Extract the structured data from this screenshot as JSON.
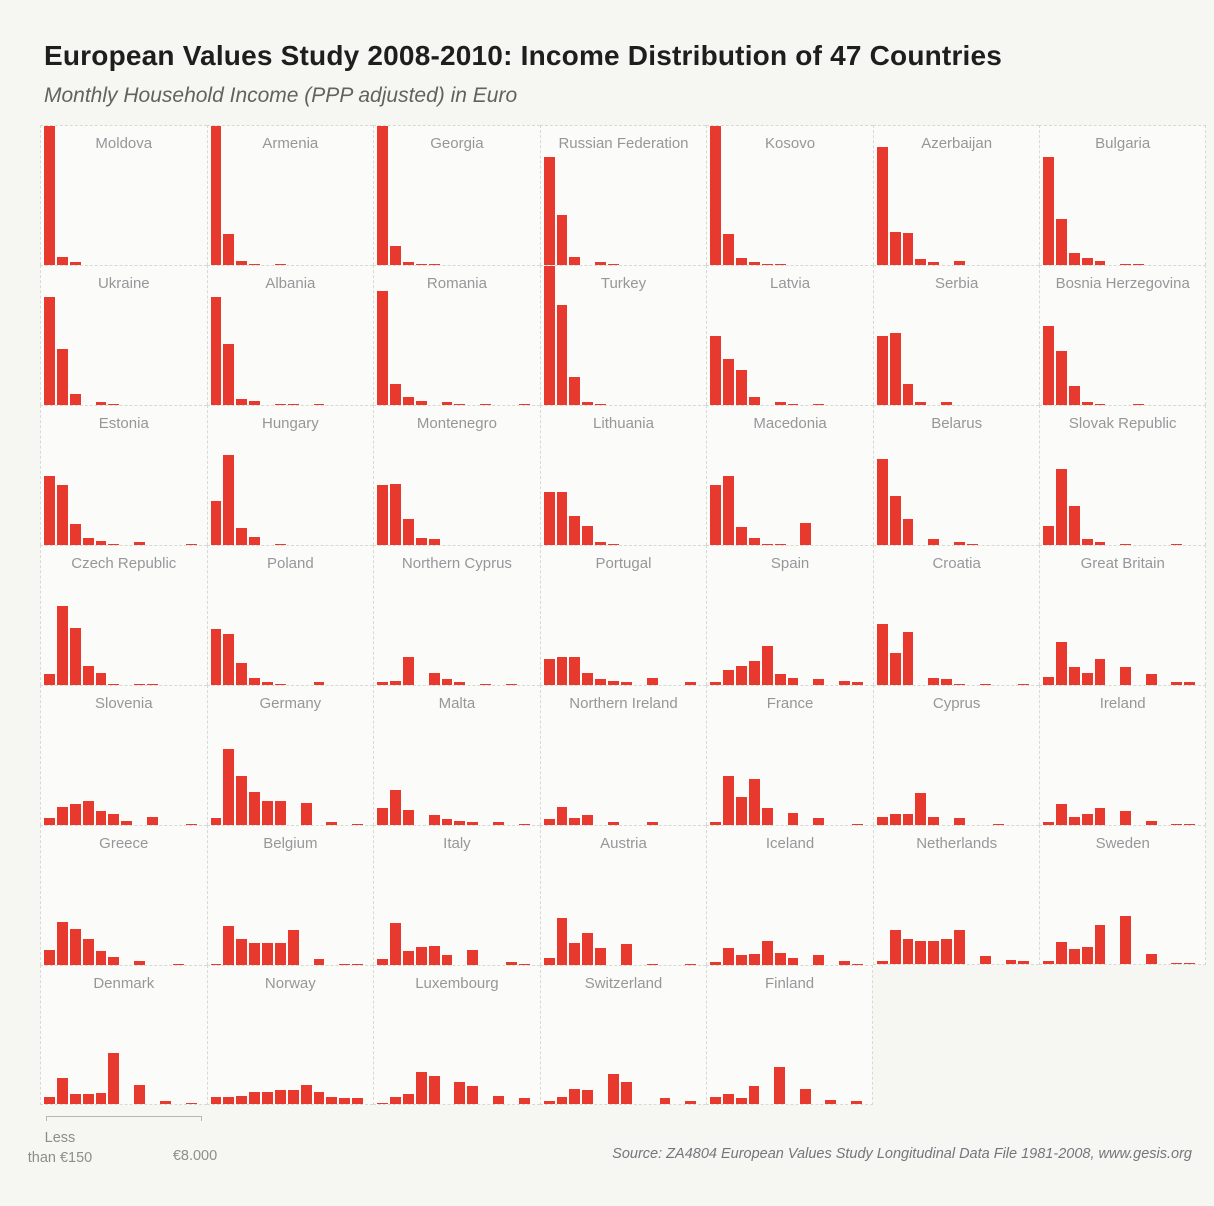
{
  "header": {
    "title": "European Values Study 2008-2010: Income Distribution of 47 Countries",
    "subtitle": "Monthly Household Income (PPP adjusted) in Euro"
  },
  "footer": {
    "axis_left_line1": "Less",
    "axis_left_line2": "than €150",
    "axis_right": "€8.000",
    "source": "Source: ZA4804 European Values Study Longitudinal Data File 1981-2008, www.gesis.org"
  },
  "colors": {
    "bar_red": "#e7392d",
    "page_background": "#f6f6f3",
    "cell_background": "#fbfbf9",
    "cell_border": "#d9d9d3",
    "title_text": "#1e1e1c",
    "muted_text": "#97979b"
  },
  "chart_data": {
    "type": "bar",
    "variant": "small-multiples histogram grid, 7 columns x 7 rows (last row has 5 panels)",
    "title": "European Values Study 2008-2010: Income Distribution of 47 Countries",
    "subtitle": "Monthly Household Income (PPP adjusted) in Euro",
    "xlabel_left": "Less than €150",
    "xlabel_right": "€8.000",
    "bin_count": 12,
    "y_unit": "relative frequency per income bin, expressed as % of panel height (estimated from pixels; no y-axis shown)",
    "legend": "none",
    "grid_lines": "off",
    "bar_color": "#e7392d",
    "countries": [
      {
        "name": "Moldova",
        "values": [
          100,
          6,
          2,
          0,
          0,
          0,
          0,
          0,
          0,
          0,
          0,
          0
        ]
      },
      {
        "name": "Armenia",
        "values": [
          100,
          22,
          3,
          1,
          0,
          1,
          0,
          0,
          0,
          0,
          0,
          0
        ]
      },
      {
        "name": "Georgia",
        "values": [
          100,
          14,
          2,
          1,
          1,
          0,
          0,
          0,
          0,
          0,
          0,
          0
        ]
      },
      {
        "name": "Russian Federation",
        "values": [
          78,
          36,
          6,
          0,
          2,
          1,
          0,
          0,
          0,
          0,
          0,
          0
        ]
      },
      {
        "name": "Kosovo",
        "values": [
          100,
          22,
          5,
          2,
          1,
          1,
          0,
          0,
          0,
          0,
          0,
          0
        ]
      },
      {
        "name": "Azerbaijan",
        "values": [
          85,
          24,
          23,
          4,
          2,
          0,
          3,
          0,
          0,
          0,
          0,
          0
        ]
      },
      {
        "name": "Bulgaria",
        "values": [
          78,
          33,
          9,
          5,
          3,
          0,
          1,
          1,
          0,
          0,
          0,
          0
        ]
      },
      {
        "name": "Ukraine",
        "values": [
          78,
          40,
          8,
          0,
          2,
          1,
          0,
          0,
          0,
          0,
          0,
          0
        ]
      },
      {
        "name": "Albania",
        "values": [
          78,
          44,
          4,
          3,
          0,
          1,
          1,
          0,
          1,
          0,
          0,
          0
        ]
      },
      {
        "name": "Romania",
        "values": [
          82,
          15,
          6,
          3,
          0,
          2,
          1,
          0,
          1,
          0,
          0,
          1
        ]
      },
      {
        "name": "Turkey",
        "values": [
          100,
          72,
          20,
          2,
          1,
          0,
          0,
          0,
          0,
          0,
          0,
          0
        ]
      },
      {
        "name": "Latvia",
        "values": [
          50,
          33,
          25,
          6,
          0,
          2,
          1,
          0,
          1,
          0,
          0,
          0
        ]
      },
      {
        "name": "Serbia",
        "values": [
          50,
          52,
          15,
          2,
          0,
          2,
          0,
          0,
          0,
          0,
          0,
          0
        ]
      },
      {
        "name": "Bosnia Herzegovina",
        "values": [
          57,
          39,
          14,
          2,
          1,
          0,
          0,
          1,
          0,
          0,
          0,
          0
        ]
      },
      {
        "name": "Estonia",
        "values": [
          50,
          43,
          15,
          5,
          3,
          1,
          0,
          2,
          0,
          0,
          0,
          1
        ]
      },
      {
        "name": "Hungary",
        "values": [
          32,
          65,
          12,
          6,
          0,
          1,
          0,
          0,
          0,
          0,
          0,
          0
        ]
      },
      {
        "name": "Montenegro",
        "values": [
          43,
          44,
          19,
          5,
          4,
          0,
          0,
          0,
          0,
          0,
          0,
          0
        ]
      },
      {
        "name": "Lithuania",
        "values": [
          38,
          38,
          21,
          14,
          2,
          1,
          0,
          0,
          0,
          0,
          0,
          0
        ]
      },
      {
        "name": "Macedonia",
        "values": [
          43,
          50,
          13,
          5,
          1,
          1,
          0,
          16,
          0,
          0,
          0,
          0
        ]
      },
      {
        "name": "Belarus",
        "values": [
          62,
          35,
          19,
          0,
          4,
          0,
          2,
          1,
          0,
          0,
          0,
          0
        ]
      },
      {
        "name": "Slovak Republic",
        "values": [
          14,
          55,
          28,
          4,
          2,
          0,
          1,
          0,
          0,
          0,
          1,
          0
        ]
      },
      {
        "name": "Czech Republic",
        "values": [
          8,
          57,
          41,
          14,
          9,
          1,
          0,
          1,
          1,
          0,
          0,
          0
        ]
      },
      {
        "name": "Poland",
        "values": [
          40,
          37,
          16,
          5,
          2,
          1,
          0,
          0,
          2,
          0,
          0,
          0
        ]
      },
      {
        "name": "Northern Cyprus",
        "values": [
          2,
          3,
          20,
          0,
          9,
          4,
          2,
          0,
          1,
          0,
          1,
          0
        ]
      },
      {
        "name": "Portugal",
        "values": [
          19,
          20,
          20,
          9,
          4,
          3,
          2,
          0,
          5,
          0,
          0,
          2
        ]
      },
      {
        "name": "Spain",
        "values": [
          2,
          11,
          14,
          17,
          28,
          8,
          5,
          0,
          4,
          0,
          3,
          2
        ]
      },
      {
        "name": "Croatia",
        "values": [
          44,
          23,
          38,
          0,
          5,
          4,
          1,
          0,
          1,
          0,
          0,
          1
        ]
      },
      {
        "name": "Great Britain",
        "values": [
          6,
          31,
          13,
          9,
          19,
          0,
          13,
          0,
          8,
          0,
          2,
          2
        ]
      },
      {
        "name": "Slovenia",
        "values": [
          5,
          13,
          15,
          17,
          10,
          8,
          3,
          0,
          6,
          0,
          0,
          1
        ]
      },
      {
        "name": "Germany",
        "values": [
          5,
          55,
          35,
          24,
          17,
          17,
          0,
          16,
          0,
          2,
          0,
          1
        ]
      },
      {
        "name": "Malta",
        "values": [
          12,
          25,
          11,
          0,
          7,
          4,
          3,
          2,
          0,
          2,
          0,
          1
        ]
      },
      {
        "name": "Northern Ireland",
        "values": [
          4,
          13,
          5,
          7,
          0,
          2,
          0,
          0,
          2,
          0,
          0,
          0
        ]
      },
      {
        "name": "France",
        "values": [
          2,
          35,
          20,
          33,
          12,
          0,
          9,
          0,
          5,
          0,
          0,
          1
        ]
      },
      {
        "name": "Cyprus",
        "values": [
          6,
          8,
          8,
          23,
          6,
          0,
          5,
          0,
          0,
          1,
          0,
          0
        ]
      },
      {
        "name": "Ireland",
        "values": [
          2,
          15,
          6,
          8,
          12,
          0,
          10,
          0,
          3,
          0,
          1,
          1
        ]
      },
      {
        "name": "Greece",
        "values": [
          11,
          31,
          26,
          19,
          10,
          6,
          0,
          3,
          0,
          0,
          1,
          0
        ]
      },
      {
        "name": "Belgium",
        "values": [
          1,
          28,
          19,
          16,
          16,
          16,
          25,
          0,
          4,
          0,
          1,
          1
        ]
      },
      {
        "name": "Italy",
        "values": [
          4,
          30,
          10,
          13,
          14,
          7,
          0,
          11,
          0,
          0,
          2,
          1
        ]
      },
      {
        "name": "Austria",
        "values": [
          5,
          34,
          16,
          23,
          12,
          0,
          15,
          0,
          1,
          0,
          0,
          1
        ]
      },
      {
        "name": "Iceland",
        "values": [
          2,
          12,
          7,
          8,
          17,
          9,
          5,
          0,
          7,
          0,
          3,
          1
        ]
      },
      {
        "name": "Netherlands",
        "values": [
          2,
          25,
          18,
          17,
          17,
          18,
          25,
          0,
          6,
          0,
          3,
          2
        ]
      },
      {
        "name": "Sweden",
        "values": [
          2,
          16,
          11,
          12,
          28,
          0,
          35,
          0,
          7,
          0,
          1,
          1
        ]
      },
      {
        "name": "Denmark",
        "values": [
          5,
          19,
          7,
          7,
          8,
          37,
          0,
          14,
          0,
          2,
          0,
          1
        ]
      },
      {
        "name": "Norway",
        "values": [
          5,
          5,
          6,
          9,
          9,
          10,
          10,
          14,
          9,
          5,
          4,
          4
        ]
      },
      {
        "name": "Luxembourg",
        "values": [
          1,
          5,
          7,
          23,
          20,
          0,
          16,
          13,
          0,
          6,
          0,
          4
        ]
      },
      {
        "name": "Switzerland",
        "values": [
          2,
          5,
          11,
          10,
          0,
          22,
          16,
          0,
          0,
          4,
          0,
          2
        ]
      },
      {
        "name": "Finland",
        "values": [
          5,
          7,
          4,
          13,
          0,
          27,
          0,
          11,
          0,
          3,
          0,
          2
        ]
      }
    ]
  }
}
